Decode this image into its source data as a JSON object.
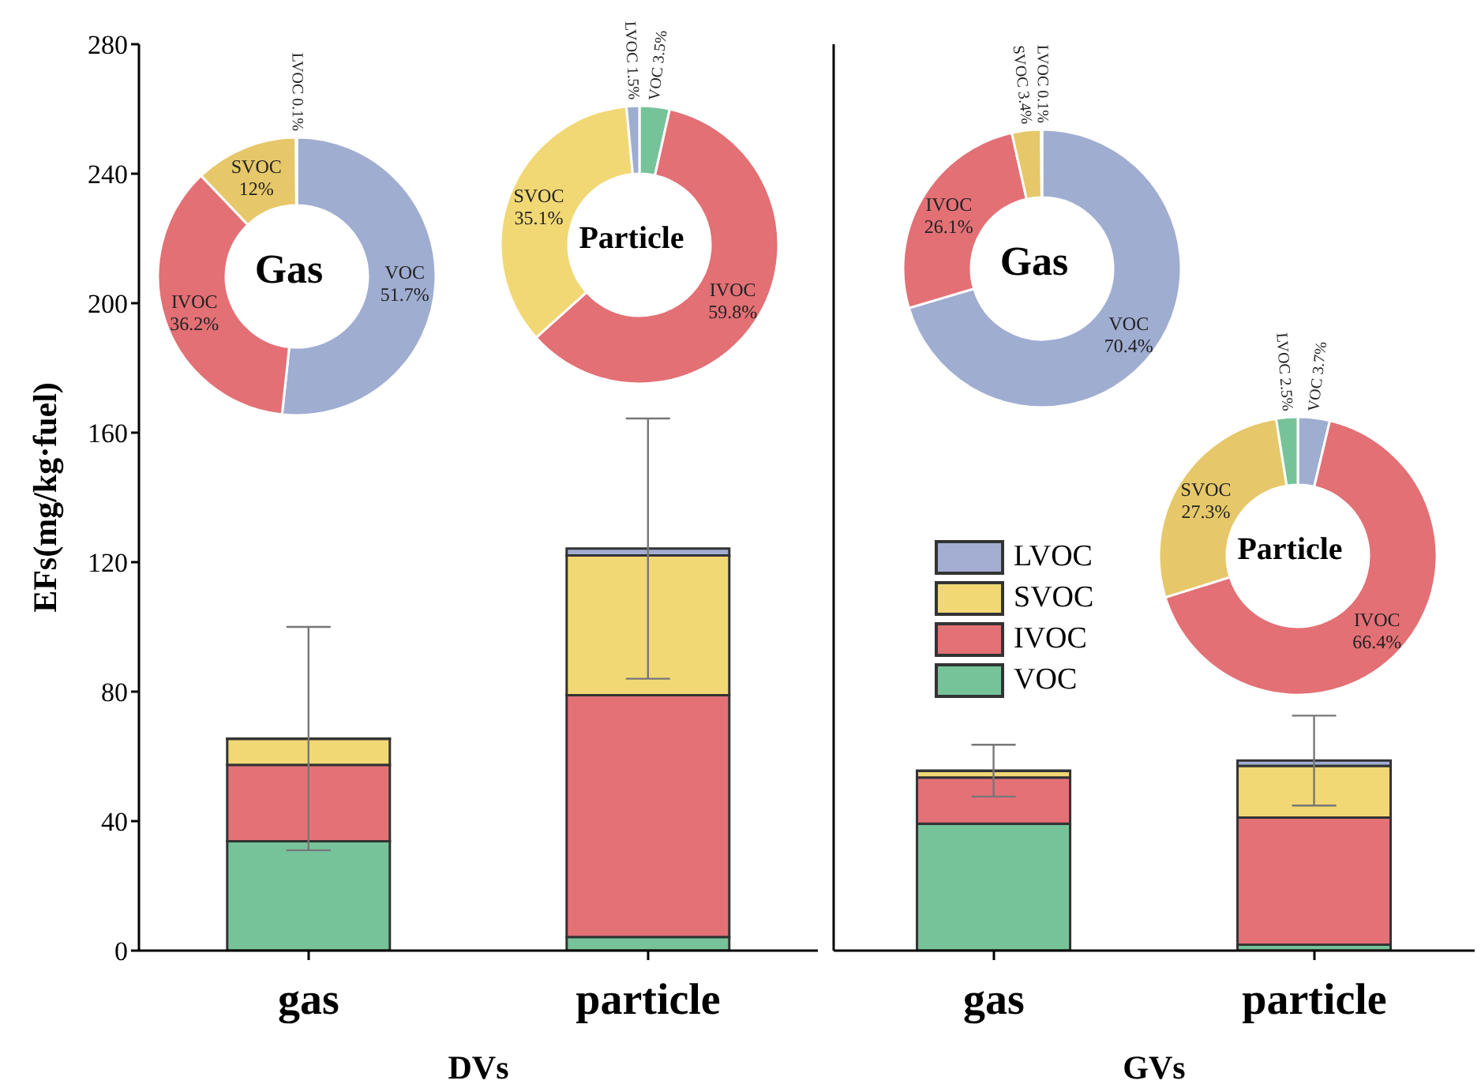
{
  "chart_data": [
    {
      "type": "bar",
      "stacked": true,
      "categories": [
        "gas",
        "particle"
      ],
      "xlabel": "DVs",
      "ylabel": "EFs(mg/kg·fuel)",
      "ylim": [
        0,
        280
      ],
      "yticks": [
        0,
        40,
        80,
        120,
        160,
        200,
        240,
        280
      ],
      "legend": false,
      "series": [
        {
          "color": "#76c39a",
          "values": [
            33.8,
            4.2
          ]
        },
        {
          "color": "#e47176",
          "values": [
            23.6,
            74.7
          ]
        },
        {
          "color": "#f1d874",
          "values": [
            8.0,
            43.2
          ]
        },
        {
          "color": "#a3aed2",
          "values": [
            0.1,
            2.1
          ],
          "errors": [
            34.5,
            40.2
          ]
        }
      ]
    },
    {
      "type": "donut",
      "title": "Gas",
      "categories": [
        "VOC",
        "IVOC",
        "SVOC",
        "LVOC"
      ],
      "values": [
        51.7,
        36.2,
        12,
        0.1
      ],
      "colors": [
        "#9fadd1",
        "#e27075",
        "#e6c86a",
        "#9fadd1"
      ],
      "value_labels": [
        "51.7%",
        "36.2%",
        "12%",
        "0.1%"
      ]
    },
    {
      "type": "donut",
      "title": "Particle",
      "categories": [
        "VOC",
        "IVOC",
        "SVOC",
        "LVOC"
      ],
      "values": [
        3.5,
        59.8,
        35.1,
        1.5
      ],
      "colors": [
        "#76c39a",
        "#e27075",
        "#f1d874",
        "#9fadd1"
      ],
      "value_labels": [
        "3.5%",
        "59.8%",
        "35.1%",
        "1.5%"
      ]
    },
    {
      "type": "bar",
      "stacked": true,
      "categories": [
        "gas",
        "particle"
      ],
      "xlabel": "GVs",
      "ylim": [
        0,
        280
      ],
      "yticks": [
        0,
        40,
        80,
        120,
        160,
        200,
        240,
        280
      ],
      "tick_labels": "x",
      "legend": "left",
      "series": [
        {
          "name": "VOC",
          "color": "#76c39a",
          "values": [
            39.2,
            1.8
          ]
        },
        {
          "name": "IVOC",
          "color": "#e47176",
          "values": [
            14.3,
            39.3
          ]
        },
        {
          "name": "SVOC",
          "color": "#f1d874",
          "values": [
            2.0,
            16.0
          ]
        },
        {
          "name": "LVOC",
          "color": "#a3aed2",
          "values": [
            0.1,
            1.6
          ],
          "errors": [
            8.0,
            13.9
          ]
        }
      ]
    },
    {
      "type": "donut",
      "title": "Gas",
      "categories": [
        "VOC",
        "IVOC",
        "SVOC",
        "LVOC"
      ],
      "values": [
        70.4,
        26.1,
        3.4,
        0.1
      ],
      "colors": [
        "#9fadd1",
        "#e27075",
        "#e6c86a",
        "#9fadd1"
      ],
      "value_labels": [
        "70.4%",
        "26.1%",
        "3.4%",
        "0.1%"
      ]
    },
    {
      "type": "donut",
      "title": "Particle",
      "categories": [
        "VOC",
        "IVOC",
        "SVOC",
        "LVOC"
      ],
      "values": [
        3.7,
        66.4,
        27.3,
        2.5
      ],
      "colors": [
        "#9fadd1",
        "#e27075",
        "#e6c86a",
        "#76c39a"
      ],
      "value_labels": [
        "3.7%",
        "66.4%",
        "27.3%",
        "2.5%"
      ]
    }
  ]
}
